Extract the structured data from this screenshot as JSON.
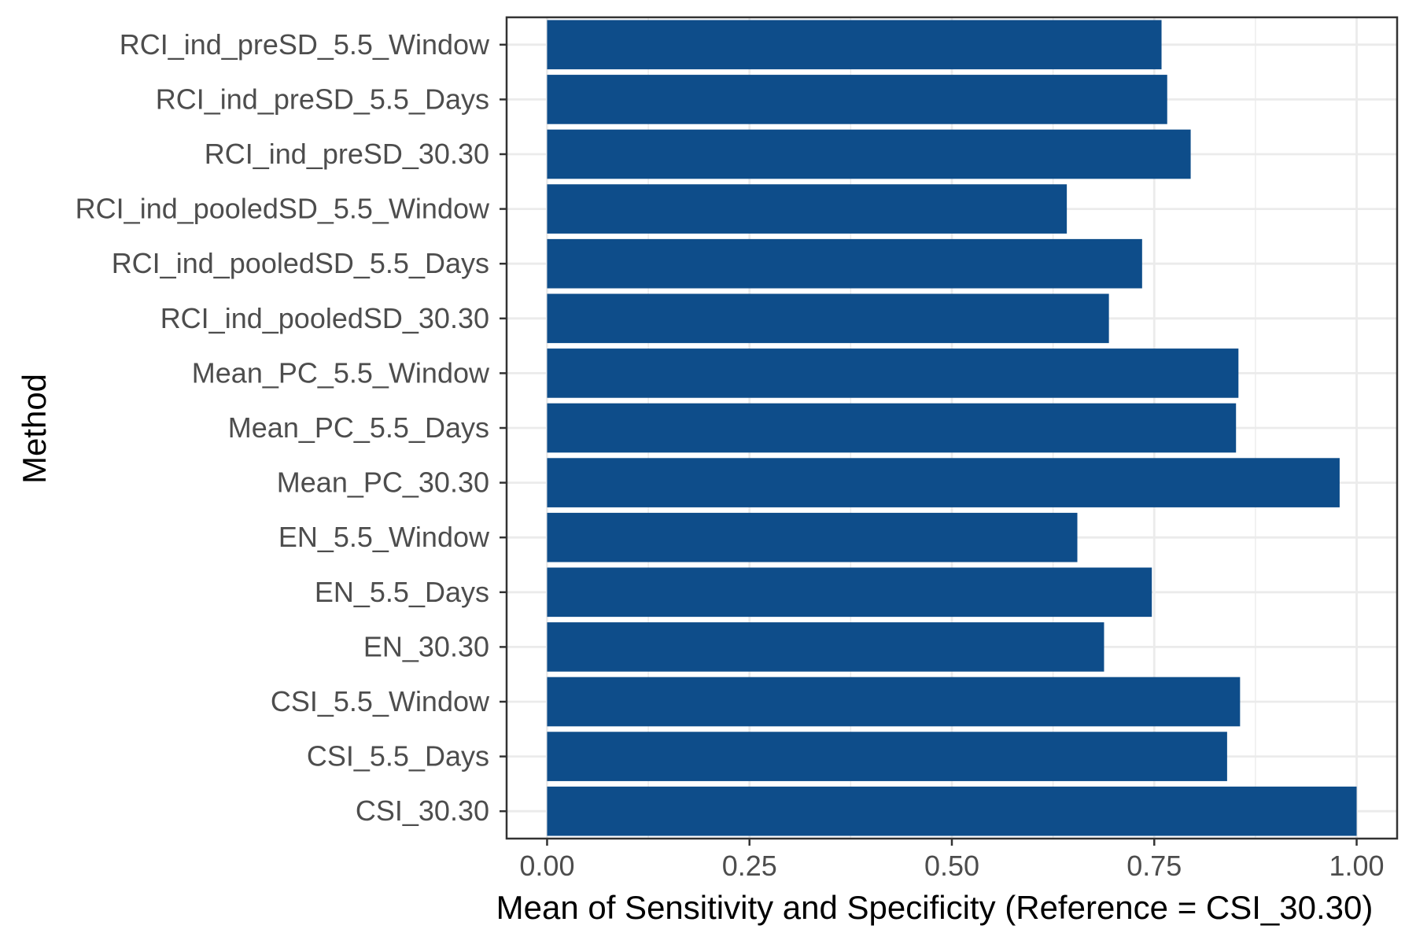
{
  "chart_data": {
    "type": "bar",
    "orientation": "horizontal",
    "categories": [
      "RCI_ind_preSD_5.5_Window",
      "RCI_ind_preSD_5.5_Days",
      "RCI_ind_preSD_30.30",
      "RCI_ind_pooledSD_5.5_Window",
      "RCI_ind_pooledSD_5.5_Days",
      "RCI_ind_pooledSD_30.30",
      "Mean_PC_5.5_Window",
      "Mean_PC_5.5_Days",
      "Mean_PC_30.30",
      "EN_5.5_Window",
      "EN_5.5_Days",
      "EN_30.30",
      "CSI_5.5_Window",
      "CSI_5.5_Days",
      "CSI_30.30"
    ],
    "values": [
      0.759,
      0.766,
      0.795,
      0.642,
      0.735,
      0.694,
      0.854,
      0.851,
      0.979,
      0.655,
      0.747,
      0.688,
      0.856,
      0.84,
      1.0
    ],
    "xlim": [
      -0.05,
      1.05
    ],
    "x_ticks": [
      0.0,
      0.25,
      0.5,
      0.75,
      1.0
    ],
    "x_tick_labels": [
      "0.00",
      "0.25",
      "0.50",
      "0.75",
      "1.00"
    ],
    "xlabel": "Mean of Sensitivity and Specificity (Reference = CSI_30.30)",
    "ylabel": "Method",
    "bar_color": "#0e4d8a",
    "grid_color": "#ebebeb",
    "panel_border_color": "#333333",
    "grid": true,
    "legend": false
  }
}
